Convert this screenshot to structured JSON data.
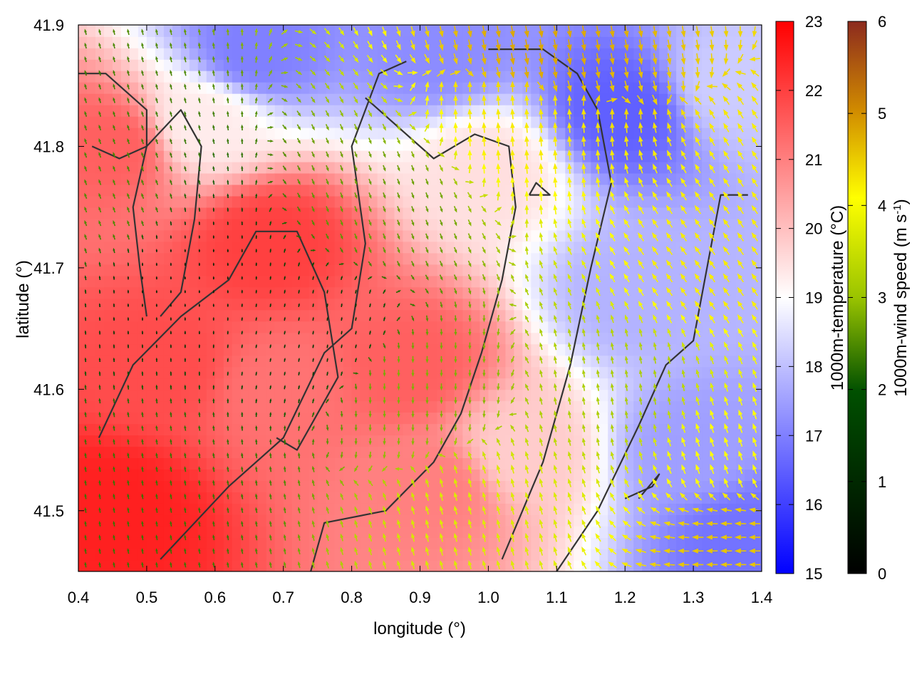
{
  "chart_data": {
    "type": "heatmap",
    "title": "",
    "xlabel": "longitude (°)",
    "ylabel": "latitude (°)",
    "xlim": [
      0.4,
      1.4
    ],
    "ylim": [
      41.45,
      41.9
    ],
    "x_ticks": [
      "0.4",
      "0.5",
      "0.6",
      "0.7",
      "0.8",
      "0.9",
      "1.0",
      "1.1",
      "1.2",
      "1.3",
      "1.4"
    ],
    "y_ticks": [
      "41.5",
      "41.6",
      "41.7",
      "41.8",
      "41.9"
    ],
    "temperature_colorbar": {
      "label": "1000m-temperature (°C)",
      "range": [
        15,
        23
      ],
      "ticks": [
        "15",
        "16",
        "17",
        "18",
        "19",
        "20",
        "21",
        "22",
        "23"
      ],
      "colors": [
        "#0000ff",
        "#ffffff",
        "#ff0000"
      ]
    },
    "wind_colorbar": {
      "label_main": "1000m-wind speed (m s",
      "label_sup": "-1",
      "label_end": ")",
      "range": [
        0,
        6
      ],
      "ticks": [
        "0",
        "1",
        "2",
        "3",
        "4",
        "5",
        "6"
      ],
      "colors": [
        "#000000",
        "#005000",
        "#9ac400",
        "#ffff00",
        "#d08a00",
        "#8c2a1e"
      ]
    },
    "temperature_field_samples": [
      {
        "lon": 0.45,
        "lat": 41.5,
        "t": 22.5
      },
      {
        "lon": 0.52,
        "lat": 41.62,
        "t": 21.8
      },
      {
        "lon": 0.45,
        "lat": 41.8,
        "t": 21.5
      },
      {
        "lon": 0.58,
        "lat": 41.82,
        "t": 19.3
      },
      {
        "lon": 0.68,
        "lat": 41.72,
        "t": 22.0
      },
      {
        "lon": 0.7,
        "lat": 41.6,
        "t": 21.2
      },
      {
        "lon": 0.88,
        "lat": 41.62,
        "t": 21.5
      },
      {
        "lon": 0.92,
        "lat": 41.52,
        "t": 21.0
      },
      {
        "lon": 0.66,
        "lat": 41.88,
        "t": 17.0
      },
      {
        "lon": 0.92,
        "lat": 41.88,
        "t": 17.2
      },
      {
        "lon": 1.0,
        "lat": 41.78,
        "t": 19.5
      },
      {
        "lon": 1.05,
        "lat": 41.55,
        "t": 19.8
      },
      {
        "lon": 1.2,
        "lat": 41.83,
        "t": 16.5
      },
      {
        "lon": 1.22,
        "lat": 41.68,
        "t": 17.8
      },
      {
        "lon": 1.3,
        "lat": 41.55,
        "t": 17.5
      },
      {
        "lon": 1.35,
        "lat": 41.85,
        "t": 18.2
      },
      {
        "lon": 1.38,
        "lat": 41.48,
        "t": 16.8
      }
    ],
    "wind_field_samples": [
      {
        "lon": 0.45,
        "lat": 41.75,
        "speed": 1.8,
        "dir_deg": 200
      },
      {
        "lon": 0.55,
        "lat": 41.7,
        "speed": 0.5,
        "dir_deg": 180
      },
      {
        "lon": 0.5,
        "lat": 41.52,
        "speed": 1.6,
        "dir_deg": 190
      },
      {
        "lon": 0.75,
        "lat": 41.65,
        "speed": 0.8,
        "dir_deg": 170
      },
      {
        "lon": 0.85,
        "lat": 41.75,
        "speed": 2.0,
        "dir_deg": 20
      },
      {
        "lon": 0.9,
        "lat": 41.6,
        "speed": 2.2,
        "dir_deg": 0
      },
      {
        "lon": 1.05,
        "lat": 41.82,
        "speed": 3.8,
        "dir_deg": 185
      },
      {
        "lon": 1.08,
        "lat": 41.88,
        "speed": 4.5,
        "dir_deg": 10
      },
      {
        "lon": 1.0,
        "lat": 41.5,
        "speed": 3.2,
        "dir_deg": 195
      },
      {
        "lon": 1.2,
        "lat": 41.6,
        "speed": 2.6,
        "dir_deg": 190
      },
      {
        "lon": 1.32,
        "lat": 41.7,
        "speed": 3.8,
        "dir_deg": 215
      },
      {
        "lon": 1.35,
        "lat": 41.55,
        "speed": 3.6,
        "dir_deg": 200
      },
      {
        "lon": 1.36,
        "lat": 41.47,
        "speed": 4.2,
        "dir_deg": 270
      }
    ],
    "contours": [
      [
        [
          0.42,
          41.8
        ],
        [
          0.46,
          41.79
        ],
        [
          0.5,
          41.8
        ],
        [
          0.5,
          41.83
        ],
        [
          0.44,
          41.86
        ],
        [
          0.4,
          41.86
        ]
      ],
      [
        [
          0.5,
          41.66
        ],
        [
          0.49,
          41.7
        ],
        [
          0.48,
          41.75
        ],
        [
          0.5,
          41.8
        ],
        [
          0.55,
          41.83
        ],
        [
          0.58,
          41.8
        ],
        [
          0.57,
          41.74
        ],
        [
          0.55,
          41.68
        ],
        [
          0.52,
          41.66
        ]
      ],
      [
        [
          0.43,
          41.56
        ],
        [
          0.48,
          41.62
        ],
        [
          0.55,
          41.66
        ],
        [
          0.62,
          41.69
        ],
        [
          0.66,
          41.73
        ],
        [
          0.72,
          41.73
        ],
        [
          0.76,
          41.68
        ],
        [
          0.78,
          41.61
        ],
        [
          0.74,
          41.57
        ],
        [
          0.72,
          41.55
        ],
        [
          0.69,
          41.56
        ]
      ],
      [
        [
          0.52,
          41.46
        ],
        [
          0.62,
          41.52
        ],
        [
          0.7,
          41.56
        ],
        [
          0.76,
          41.63
        ],
        [
          0.8,
          41.65
        ],
        [
          0.82,
          41.72
        ],
        [
          0.8,
          41.8
        ],
        [
          0.84,
          41.86
        ],
        [
          0.88,
          41.87
        ]
      ],
      [
        [
          0.74,
          41.45
        ],
        [
          0.76,
          41.49
        ],
        [
          0.85,
          41.5
        ],
        [
          0.92,
          41.54
        ],
        [
          0.96,
          41.58
        ],
        [
          0.99,
          41.63
        ],
        [
          1.02,
          41.69
        ],
        [
          1.04,
          41.75
        ],
        [
          1.03,
          41.8
        ],
        [
          0.98,
          41.81
        ],
        [
          0.92,
          41.79
        ],
        [
          0.86,
          41.82
        ],
        [
          0.82,
          41.84
        ]
      ],
      [
        [
          1.02,
          41.46
        ],
        [
          1.08,
          41.54
        ],
        [
          1.12,
          41.62
        ],
        [
          1.15,
          41.7
        ],
        [
          1.18,
          41.77
        ],
        [
          1.16,
          41.83
        ],
        [
          1.13,
          41.86
        ],
        [
          1.08,
          41.88
        ],
        [
          1.0,
          41.88
        ]
      ],
      [
        [
          1.1,
          41.45
        ],
        [
          1.16,
          41.5
        ],
        [
          1.22,
          41.57
        ],
        [
          1.26,
          41.62
        ],
        [
          1.3,
          41.64
        ],
        [
          1.32,
          41.7
        ],
        [
          1.34,
          41.76
        ],
        [
          1.38,
          41.76
        ]
      ],
      [
        [
          1.2,
          41.51
        ],
        [
          1.24,
          41.52
        ],
        [
          1.25,
          41.53
        ],
        [
          1.22,
          41.51
        ]
      ],
      [
        [
          1.06,
          41.76
        ],
        [
          1.09,
          41.76
        ],
        [
          1.07,
          41.77
        ],
        [
          1.06,
          41.76
        ]
      ]
    ]
  }
}
